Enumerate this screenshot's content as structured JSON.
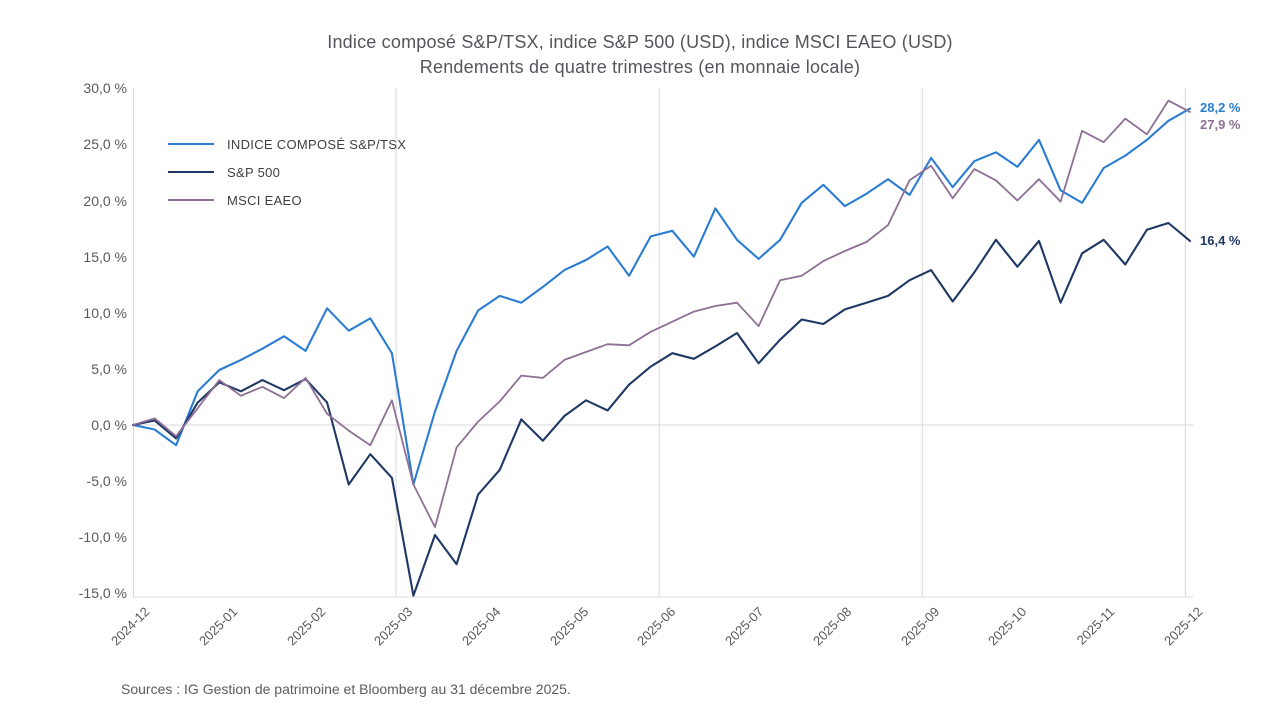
{
  "title": "Indice composé S&P/TSX, indice S&P 500 (USD), indice MSCI EAEO (USD)",
  "subtitle": "Rendements de quatre trimestres (en monnaie locale)",
  "source": {
    "text": "Sources : IG Gestion de patrimoine et Bloomberg au 31 décembre 2025."
  },
  "colors": {
    "tsx_blue": "#2b7cd3",
    "sp500_navy": "#1f3864",
    "msci_mauve": "#8e7095",
    "grid": "#d9d9d9",
    "axis_text": "#595959",
    "title_text": "#54565c"
  },
  "chart_data": {
    "type": "line",
    "title": "Indice composé S&P/TSX, indice S&P 500 (USD), indice MSCI EAEO (USD)",
    "subtitle": "Rendements de quatre trimestres (en monnaie locale)",
    "x_unit": "month",
    "x_ticks": [
      "2024-12",
      "2025-01",
      "2025-02",
      "2025-03",
      "2025-04",
      "2025-05",
      "2025-06",
      "2025-07",
      "2025-08",
      "2025-09",
      "2025-10",
      "2025-11",
      "2025-12"
    ],
    "y_ticks": [
      {
        "label": "30,0 %",
        "value": 30
      },
      {
        "label": "25,0 %",
        "value": 25
      },
      {
        "label": "20,0 %",
        "value": 20
      },
      {
        "label": "15,0 %",
        "value": 15
      },
      {
        "label": "10,0 %",
        "value": 10
      },
      {
        "label": "5,0 %",
        "value": 5
      },
      {
        "label": "0,0 %",
        "value": 0
      },
      {
        "label": "-5,0 %",
        "value": -5
      },
      {
        "label": "-10,0 %",
        "value": -10
      },
      {
        "label": "-15,0 %",
        "value": -15
      }
    ],
    "ylim": [
      -15,
      30
    ],
    "grid": {
      "horizontal_values": [
        0
      ],
      "vertical_gridline_months": [
        "2025-03",
        "2025-06",
        "2025-09",
        "2025-12"
      ]
    },
    "legend_position": "top-left",
    "series": [
      {
        "name": "INDICE COMPOSÉ S&P/TSX",
        "color": "#2b7cd3",
        "end_label": "28,2 %",
        "end_value": 28.2,
        "values": [
          0,
          -0.4,
          -1.8,
          3,
          4.9,
          5.8,
          6.8,
          7.9,
          6.6,
          10.4,
          8.4,
          9.5,
          6.4,
          -5.3,
          1.2,
          6.6,
          10.2,
          11.5,
          10.9,
          12.3,
          13.8,
          14.7,
          15.9,
          13.3,
          16.8,
          17.3,
          15,
          19.3,
          16.5,
          14.8,
          16.5,
          19.8,
          21.4,
          19.5,
          20.6,
          21.9,
          20.5,
          23.8,
          21.2,
          23.5,
          24.3,
          23,
          25.4,
          20.9,
          19.8,
          22.9,
          24,
          25.4,
          27.1,
          28.2
        ]
      },
      {
        "name": "S&P 500",
        "color": "#1f3864",
        "end_label": "16,4 %",
        "end_value": 16.4,
        "values": [
          0,
          0.4,
          -1.2,
          2,
          3.8,
          3,
          4,
          3.1,
          4.1,
          2,
          -5.3,
          -2.6,
          -4.7,
          -15.2,
          -9.8,
          -12.4,
          -6.2,
          -4,
          0.5,
          -1.4,
          0.8,
          2.2,
          1.3,
          3.6,
          5.2,
          6.4,
          5.9,
          7,
          8.2,
          5.5,
          7.6,
          9.4,
          9,
          10.3,
          10.9,
          11.5,
          12.9,
          13.8,
          11,
          13.6,
          16.5,
          14.1,
          16.4,
          10.9,
          15.3,
          16.5,
          14.3,
          17.4,
          18,
          16.4
        ]
      },
      {
        "name": "MSCI EAEO",
        "color": "#8e7095",
        "end_label": "27,9 %",
        "end_value": 27.9,
        "values": [
          0,
          0.6,
          -1,
          1.5,
          4,
          2.6,
          3.4,
          2.4,
          4.2,
          1,
          -0.5,
          -1.8,
          2.2,
          -5.3,
          -9.1,
          -2,
          0.3,
          2.1,
          4.4,
          4.2,
          5.8,
          6.5,
          7.2,
          7.1,
          8.3,
          9.2,
          10.1,
          10.6,
          10.9,
          8.8,
          12.9,
          13.3,
          14.6,
          15.5,
          16.3,
          17.8,
          21.8,
          23.1,
          20.2,
          22.8,
          21.8,
          20,
          21.9,
          19.9,
          26.2,
          25.2,
          27.3,
          25.9,
          28.9,
          27.9
        ]
      }
    ]
  }
}
